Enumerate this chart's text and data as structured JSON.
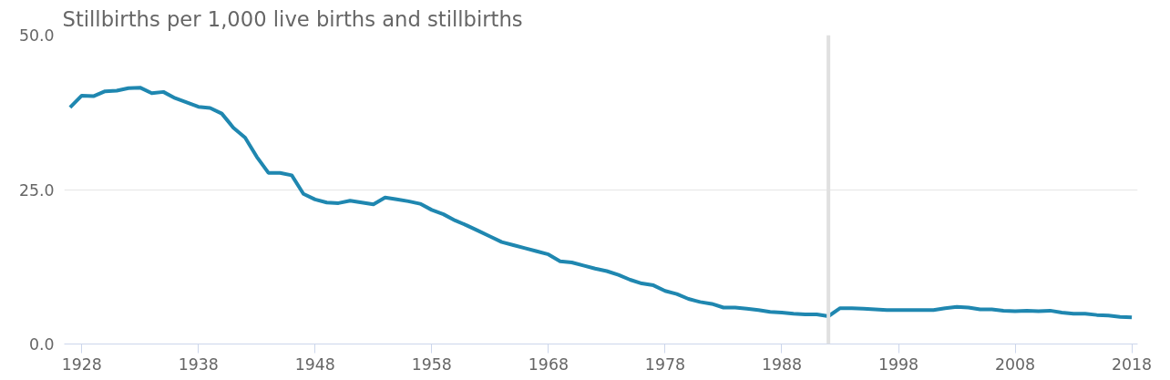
{
  "chart_data": {
    "type": "line",
    "title": "Stillbirths per 1,000 live births and stillbirths",
    "x": [
      1927,
      1928,
      1929,
      1930,
      1931,
      1932,
      1933,
      1934,
      1935,
      1936,
      1937,
      1938,
      1939,
      1940,
      1941,
      1942,
      1943,
      1944,
      1945,
      1946,
      1947,
      1948,
      1949,
      1950,
      1951,
      1952,
      1953,
      1954,
      1955,
      1956,
      1957,
      1958,
      1959,
      1960,
      1961,
      1962,
      1963,
      1964,
      1965,
      1966,
      1967,
      1968,
      1969,
      1970,
      1971,
      1972,
      1973,
      1974,
      1975,
      1976,
      1977,
      1978,
      1979,
      1980,
      1981,
      1982,
      1983,
      1984,
      1985,
      1986,
      1987,
      1988,
      1989,
      1990,
      1991,
      1992,
      1993,
      1994,
      1995,
      1996,
      1997,
      1998,
      1999,
      2000,
      2001,
      2002,
      2003,
      2004,
      2005,
      2006,
      2007,
      2008,
      2009,
      2010,
      2011,
      2012,
      2013,
      2014,
      2015,
      2016,
      2017,
      2018
    ],
    "series": [
      {
        "color": "#1f87b0",
        "values": [
          38.3,
          40.2,
          40.1,
          40.9,
          41.0,
          41.4,
          41.5,
          40.6,
          40.8,
          39.8,
          39.1,
          38.4,
          38.2,
          37.3,
          35.0,
          33.4,
          30.3,
          27.7,
          27.7,
          27.3,
          24.3,
          23.4,
          22.9,
          22.8,
          23.2,
          22.9,
          22.6,
          23.7,
          23.4,
          23.1,
          22.7,
          21.7,
          21.0,
          20.0,
          19.2,
          18.3,
          17.4,
          16.5,
          16.0,
          15.5,
          15.0,
          14.5,
          13.4,
          13.2,
          12.7,
          12.2,
          11.8,
          11.2,
          10.4,
          9.8,
          9.5,
          8.6,
          8.1,
          7.3,
          6.8,
          6.5,
          5.9,
          5.9,
          5.7,
          5.5,
          5.2,
          5.1,
          4.9,
          4.8,
          4.8,
          4.5,
          5.8,
          5.8,
          5.7,
          5.6,
          5.5,
          5.5,
          5.5,
          5.5,
          5.5,
          5.8,
          6.0,
          5.9,
          5.6,
          5.6,
          5.4,
          5.3,
          5.4,
          5.3,
          5.4,
          5.1,
          4.9,
          4.9,
          4.7,
          4.6,
          4.4,
          4.3
        ]
      }
    ],
    "xlim": [
      1926.5,
      2018.5
    ],
    "xticks": [
      1928,
      1938,
      1948,
      1958,
      1968,
      1978,
      1988,
      1998,
      2008,
      2018
    ],
    "ylim": [
      0,
      50
    ],
    "yticks": [
      {
        "value": 0,
        "label": "0.0"
      },
      {
        "value": 25,
        "label": "25.0"
      },
      {
        "value": 50,
        "label": "50.0"
      }
    ],
    "ref_lines": [
      {
        "axis": "x",
        "value": 1992,
        "color": "#e0e0e0"
      }
    ],
    "grid": "y",
    "line_style": "solid"
  }
}
